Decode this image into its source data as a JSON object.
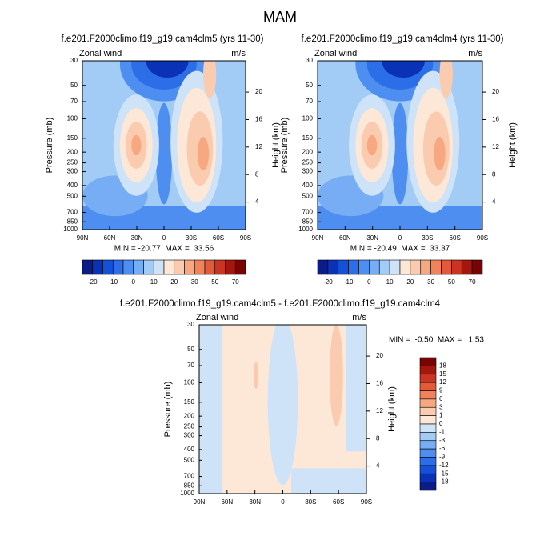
{
  "title": "MAM",
  "chart_data": [
    {
      "type": "contour",
      "title": "f.e201.F2000climo.f19_g19.cam4clm5 (yrs 11-30)",
      "left_label": "Zonal wind",
      "right_label": "m/s",
      "ylabel": "Pressure (mb)",
      "y2label": "Height (km)",
      "stats": "MIN = -20.77  MAX =  33.56",
      "xlim": [
        90,
        -90
      ],
      "xticks": [
        {
          "value": 90,
          "label": "90N"
        },
        {
          "value": 60,
          "label": "60N"
        },
        {
          "value": 30,
          "label": "30N"
        },
        0,
        {
          "value": -30,
          "label": "30S"
        },
        {
          "value": -60,
          "label": "60S"
        },
        {
          "value": -90,
          "label": "90S"
        }
      ],
      "ylim": [
        30,
        1000
      ],
      "log_y": true,
      "yticks": [
        30,
        50,
        70,
        100,
        150,
        200,
        250,
        300,
        400,
        500,
        700,
        850,
        1000
      ],
      "y2ticks": [
        4,
        8,
        12,
        16,
        20
      ],
      "colorbar": {
        "orientation": "horizontal",
        "labels": [
          -20,
          -10,
          0,
          10,
          20,
          30,
          50,
          70
        ],
        "colors": [
          "#0c1c86",
          "#0a32b6",
          "#1450d8",
          "#2b6ee8",
          "#4d8ef0",
          "#76adf4",
          "#a2cbf6",
          "#cfe3f8",
          "#fde8d8",
          "#fbcbb0",
          "#f8a880",
          "#f2825a",
          "#e35a3a",
          "#c93522",
          "#a3170e",
          "#7a0404"
        ]
      }
    },
    {
      "type": "contour",
      "title": "f.e201.F2000climo.f19_g19.cam4clm4 (yrs 11-30)",
      "left_label": "Zonal wind",
      "right_label": "m/s",
      "ylabel": "Pressure (mb)",
      "y2label": "Height (km)",
      "stats": "MIN = -20.49  MAX =  33.37",
      "xlim": [
        90,
        -90
      ],
      "xticks": [
        {
          "value": 90,
          "label": "90N"
        },
        {
          "value": 60,
          "label": "60N"
        },
        {
          "value": 30,
          "label": "30N"
        },
        0,
        {
          "value": -30,
          "label": "30S"
        },
        {
          "value": -60,
          "label": "60S"
        },
        {
          "value": -90,
          "label": "90S"
        }
      ],
      "ylim": [
        30,
        1000
      ],
      "log_y": true,
      "yticks": [
        30,
        50,
        70,
        100,
        150,
        200,
        250,
        300,
        400,
        500,
        700,
        850,
        1000
      ],
      "y2ticks": [
        4,
        8,
        12,
        16,
        20
      ],
      "colorbar": {
        "orientation": "horizontal",
        "labels": [
          -20,
          -10,
          0,
          10,
          20,
          30,
          50,
          70
        ],
        "colors": [
          "#0c1c86",
          "#0a32b6",
          "#1450d8",
          "#2b6ee8",
          "#4d8ef0",
          "#76adf4",
          "#a2cbf6",
          "#cfe3f8",
          "#fde8d8",
          "#fbcbb0",
          "#f8a880",
          "#f2825a",
          "#e35a3a",
          "#c93522",
          "#a3170e",
          "#7a0404"
        ]
      }
    },
    {
      "type": "contour",
      "title": "f.e201.F2000climo.f19_g19.cam4clm5 - f.e201.F2000climo.f19_g19.cam4clm4",
      "left_label": "Zonal wind",
      "right_label": "m/s",
      "ylabel": "Pressure (mb)",
      "y2label": "Height (km)",
      "stats": "MIN =  -0.50  MAX =   1.53",
      "xlim": [
        90,
        -90
      ],
      "xticks": [
        {
          "value": 90,
          "label": "90N"
        },
        {
          "value": 60,
          "label": "60N"
        },
        {
          "value": 30,
          "label": "30N"
        },
        0,
        {
          "value": -30,
          "label": "30S"
        },
        {
          "value": -60,
          "label": "60S"
        },
        {
          "value": -90,
          "label": "90S"
        }
      ],
      "ylim": [
        30,
        1000
      ],
      "log_y": true,
      "yticks": [
        30,
        50,
        70,
        100,
        150,
        200,
        250,
        300,
        400,
        500,
        700,
        850,
        1000
      ],
      "y2ticks": [
        4,
        8,
        12,
        16,
        20
      ],
      "colorbar": {
        "orientation": "vertical",
        "labels": [
          18,
          15,
          12,
          9,
          6,
          3,
          1,
          0,
          -1,
          -3,
          -6,
          -9,
          -12,
          -15,
          -18
        ],
        "colors": [
          "#7a0404",
          "#a3170e",
          "#c93522",
          "#e35a3a",
          "#f2825a",
          "#f8a880",
          "#fbcbb0",
          "#fde8d8",
          "#cfe3f8",
          "#a2cbf6",
          "#76adf4",
          "#4d8ef0",
          "#2b6ee8",
          "#1450d8",
          "#0a32b6",
          "#0c1c86"
        ]
      }
    }
  ]
}
